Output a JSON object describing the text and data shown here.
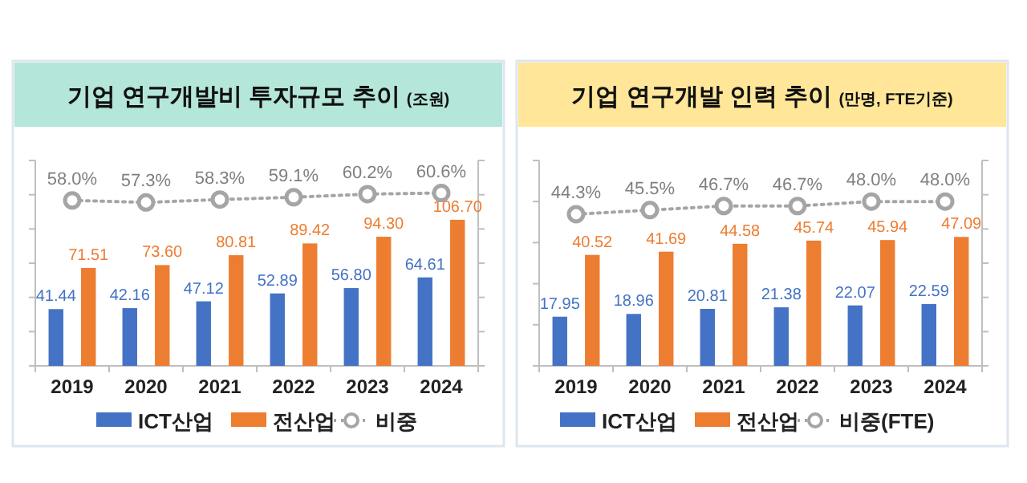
{
  "chart_data": [
    {
      "type": "bar",
      "title": "기업 연구개발비 투자규모 추이",
      "subtitle": "(조원)",
      "categories": [
        "2019",
        "2020",
        "2021",
        "2022",
        "2023",
        "2024"
      ],
      "series": [
        {
          "name": "ICT산업",
          "color": "#4472c4",
          "values": [
            41.44,
            42.16,
            47.12,
            52.89,
            56.8,
            64.61
          ],
          "value_labels": [
            "41.44",
            "42.16",
            "47.12",
            "52.89",
            "56.80",
            "64.61"
          ]
        },
        {
          "name": "전산업",
          "color": "#ed7d31",
          "values": [
            71.51,
            73.6,
            80.81,
            89.42,
            94.3,
            106.7
          ],
          "value_labels": [
            "71.51",
            "73.60",
            "80.81",
            "89.42",
            "94.30",
            "106.70"
          ]
        },
        {
          "name": "비중",
          "type": "line",
          "axis": "y2",
          "color": "#a5a5a5",
          "marker": "circle",
          "line_style": "dotted",
          "values": [
            58.0,
            57.3,
            58.3,
            59.1,
            60.2,
            60.6
          ],
          "value_labels": [
            "58.0%",
            "57.3%",
            "58.3%",
            "59.1%",
            "60.2%",
            "60.6%"
          ]
        }
      ],
      "ylim": [
        0,
        150
      ],
      "yticks": [
        {
          "value": 0,
          "label": null
        },
        {
          "value": 25,
          "label": null
        },
        {
          "value": 50,
          "label": null
        },
        {
          "value": 75,
          "label": null
        },
        {
          "value": 100,
          "label": null
        },
        {
          "value": 125,
          "label": null
        },
        {
          "value": 150,
          "label": null
        }
      ],
      "y2lim": [
        0,
        72
      ],
      "y2ticks": [
        {
          "value": 0,
          "label": null
        },
        {
          "value": 12,
          "label": null
        },
        {
          "value": 24,
          "label": null
        },
        {
          "value": 36,
          "label": null
        },
        {
          "value": 48,
          "label": null
        },
        {
          "value": 60,
          "label": null
        },
        {
          "value": 72,
          "label": null
        }
      ],
      "tick_labels": "x",
      "legend": "bottom",
      "grid": false
    },
    {
      "type": "bar",
      "title": "기업 연구개발 인력 추이",
      "subtitle": "(만명, FTE기준)",
      "categories": [
        "2019",
        "2020",
        "2021",
        "2022",
        "2023",
        "2024"
      ],
      "series": [
        {
          "name": "ICT산업",
          "color": "#4472c4",
          "values": [
            17.95,
            18.96,
            20.81,
            21.38,
            22.07,
            22.59
          ],
          "value_labels": [
            "17.95",
            "18.96",
            "20.81",
            "21.38",
            "22.07",
            "22.59"
          ]
        },
        {
          "name": "전산업",
          "color": "#ed7d31",
          "values": [
            40.52,
            41.69,
            44.58,
            45.74,
            45.94,
            47.09
          ],
          "value_labels": [
            "40.52",
            "41.69",
            "44.58",
            "45.74",
            "45.94",
            "47.09"
          ]
        },
        {
          "name": "비중(FTE)",
          "type": "line",
          "axis": "y2",
          "color": "#a5a5a5",
          "marker": "circle",
          "line_style": "dotted",
          "values": [
            44.3,
            45.5,
            46.7,
            46.7,
            48.0,
            48.0
          ],
          "value_labels": [
            "44.3%",
            "45.5%",
            "46.7%",
            "46.7%",
            "48.0%",
            "48.0%"
          ]
        }
      ],
      "ylim": [
        0,
        75
      ],
      "yticks": [
        {
          "value": 0,
          "label": null
        },
        {
          "value": 15,
          "label": null
        },
        {
          "value": 30,
          "label": null
        },
        {
          "value": 45,
          "label": null
        },
        {
          "value": 60,
          "label": null
        },
        {
          "value": 75,
          "label": null
        }
      ],
      "y2lim": [
        0,
        60
      ],
      "y2ticks": [
        {
          "value": 0,
          "label": null
        },
        {
          "value": 10,
          "label": null
        },
        {
          "value": 20,
          "label": null
        },
        {
          "value": 30,
          "label": null
        },
        {
          "value": 40,
          "label": null
        },
        {
          "value": 50,
          "label": null
        },
        {
          "value": 60,
          "label": null
        }
      ],
      "tick_labels": "x",
      "legend": "bottom",
      "grid": false
    }
  ]
}
